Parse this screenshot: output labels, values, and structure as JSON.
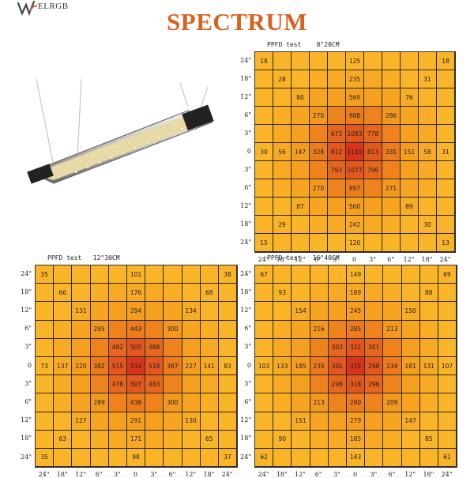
{
  "logo": {
    "text": "ELRGB"
  },
  "title": "SPECTRUM",
  "axis_labels": [
    "24\"",
    "18\"",
    "12\"",
    "6\"",
    "3\"",
    "0",
    "3\"",
    "6\"",
    "12\"",
    "18\"",
    "24\""
  ],
  "panels": [
    {
      "title": "PPFD test    8\"20CM",
      "values": [
        [
          "18",
          "",
          "",
          "",
          "",
          "125",
          "",
          "",
          "",
          "",
          "18"
        ],
        [
          "",
          "28",
          "",
          "",
          "",
          "235",
          "",
          "",
          "",
          "31",
          ""
        ],
        [
          "",
          "",
          "80",
          "",
          "",
          "569",
          "",
          "",
          "76",
          "",
          ""
        ],
        [
          "",
          "",
          "",
          "270",
          "",
          "908",
          "",
          "286",
          "",
          "",
          ""
        ],
        [
          "",
          "",
          "",
          "",
          "673",
          "1083",
          "778",
          "",
          "",
          "",
          ""
        ],
        [
          "30",
          "56",
          "147",
          "328",
          "812",
          "1110",
          "813",
          "331",
          "151",
          "58",
          "31"
        ],
        [
          "",
          "",
          "",
          "",
          "793",
          "1077",
          "796",
          "",
          "",
          "",
          ""
        ],
        [
          "",
          "",
          "",
          "270",
          "",
          "897",
          "",
          "271",
          "",
          "",
          ""
        ],
        [
          "",
          "",
          "87",
          "",
          "",
          "560",
          "",
          "",
          "89",
          "",
          ""
        ],
        [
          "",
          "29",
          "",
          "",
          "",
          "242",
          "",
          "",
          "",
          "30",
          ""
        ],
        [
          "15",
          "",
          "",
          "",
          "",
          "120",
          "",
          "",
          "",
          "",
          "13"
        ]
      ]
    },
    {
      "title": "PPFD test   12\"30CM",
      "values": [
        [
          "35",
          "",
          "",
          "",
          "",
          "101",
          "",
          "",
          "",
          "",
          "38"
        ],
        [
          "",
          "66",
          "",
          "",
          "",
          "176",
          "",
          "",
          "",
          "68",
          ""
        ],
        [
          "",
          "",
          "131",
          "",
          "",
          "294",
          "",
          "",
          "134",
          "",
          ""
        ],
        [
          "",
          "",
          "",
          "295",
          "",
          "443",
          "",
          "300",
          "",
          "",
          ""
        ],
        [
          "",
          "",
          "",
          "",
          "482",
          "505",
          "488",
          "",
          "",
          "",
          ""
        ],
        [
          "73",
          "137",
          "220",
          "382",
          "515",
          "533",
          "518",
          "387",
          "227",
          "141",
          "83"
        ],
        [
          "",
          "",
          "",
          "",
          "478",
          "507",
          "483",
          "",
          "",
          "",
          ""
        ],
        [
          "",
          "",
          "",
          "289",
          "",
          "438",
          "",
          "300",
          "",
          "",
          ""
        ],
        [
          "",
          "",
          "127",
          "",
          "",
          "291",
          "",
          "",
          "130",
          "",
          ""
        ],
        [
          "",
          "63",
          "",
          "",
          "",
          "171",
          "",
          "",
          "",
          "65",
          ""
        ],
        [
          "35",
          "",
          "",
          "",
          "",
          "98",
          "",
          "",
          "",
          "",
          "37"
        ]
      ]
    },
    {
      "title": "PPFD test   16\"40CM",
      "values": [
        [
          "67",
          "",
          "",
          "",
          "",
          "149",
          "",
          "",
          "",
          "",
          "69"
        ],
        [
          "",
          "93",
          "",
          "",
          "",
          "189",
          "",
          "",
          "",
          "88",
          ""
        ],
        [
          "",
          "",
          "154",
          "",
          "",
          "245",
          "",
          "",
          "150",
          "",
          ""
        ],
        [
          "",
          "",
          "",
          "216",
          "",
          "285",
          "",
          "213",
          "",
          "",
          ""
        ],
        [
          "",
          "",
          "",
          "",
          "303",
          "322",
          "301",
          "",
          "",
          "",
          ""
        ],
        [
          "103",
          "133",
          "185",
          "235",
          "301",
          "325",
          "298",
          "234",
          "181",
          "131",
          "107"
        ],
        [
          "",
          "",
          "",
          "",
          "298",
          "318",
          "296",
          "",
          "",
          "",
          ""
        ],
        [
          "",
          "",
          "",
          "213",
          "",
          "280",
          "",
          "209",
          "",
          "",
          ""
        ],
        [
          "",
          "",
          "151",
          "",
          "",
          "279",
          "",
          "",
          "147",
          "",
          ""
        ],
        [
          "",
          "90",
          "",
          "",
          "",
          "185",
          "",
          "",
          "",
          "85",
          ""
        ],
        [
          "62",
          "",
          "",
          "",
          "",
          "143",
          "",
          "",
          "",
          "",
          "61"
        ]
      ]
    }
  ]
}
